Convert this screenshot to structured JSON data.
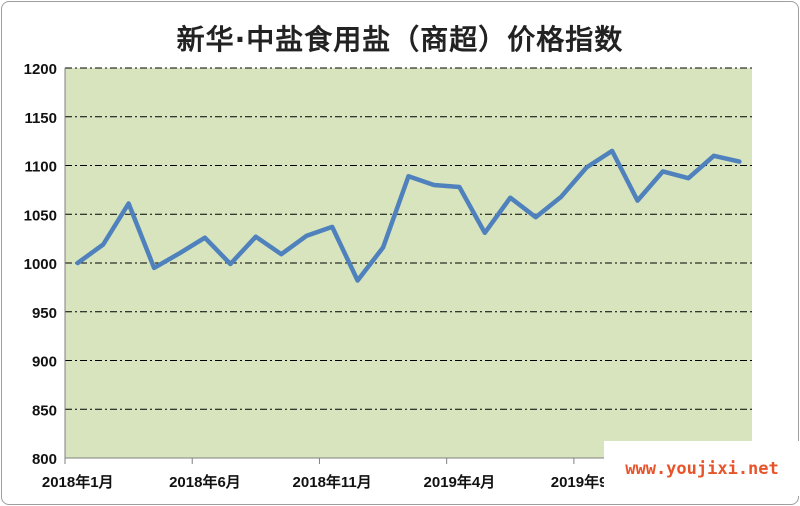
{
  "chart_data": {
    "type": "line",
    "title": "新华·中盐食用盐（商超）价格指数",
    "xlabel": "",
    "ylabel": "",
    "ylim": [
      800,
      1200
    ],
    "yticks": [
      800,
      850,
      900,
      950,
      1000,
      1050,
      1100,
      1150,
      1200
    ],
    "grid": true,
    "x_tick_labels": [
      "2018年1月",
      "2018年6月",
      "2018年11月",
      "2019年4月",
      "2019年9月"
    ],
    "x": [
      "2018年1月",
      "2018年2月",
      "2018年3月",
      "2018年4月",
      "2018年5月",
      "2018年6月",
      "2018年7月",
      "2018年8月",
      "2018年9月",
      "2018年10月",
      "2018年11月",
      "2018年12月",
      "2019年1月",
      "2019年2月",
      "2019年3月",
      "2019年4月",
      "2019年5月",
      "2019年6月",
      "2019年7月",
      "2019年8月",
      "2019年9月",
      "2019年10月",
      "2019年11月",
      "2019年12月",
      "2020年1月",
      "2020年2月",
      "2020年3月"
    ],
    "series": [
      {
        "values": [
          1000,
          1019,
          1061,
          995,
          1010,
          1026,
          999,
          1027,
          1009,
          1028,
          1037,
          982,
          1016,
          1089,
          1080,
          1078,
          1031,
          1067,
          1047,
          1068,
          1098,
          1115,
          1064,
          1094,
          1087,
          1110,
          1104
        ]
      }
    ],
    "colors": {
      "plot_background": "#d7e4bd",
      "line": "#4f81bd",
      "grid": "#000000",
      "axis": "#808080"
    }
  },
  "watermark": {
    "text": "www.youjixi.net"
  }
}
